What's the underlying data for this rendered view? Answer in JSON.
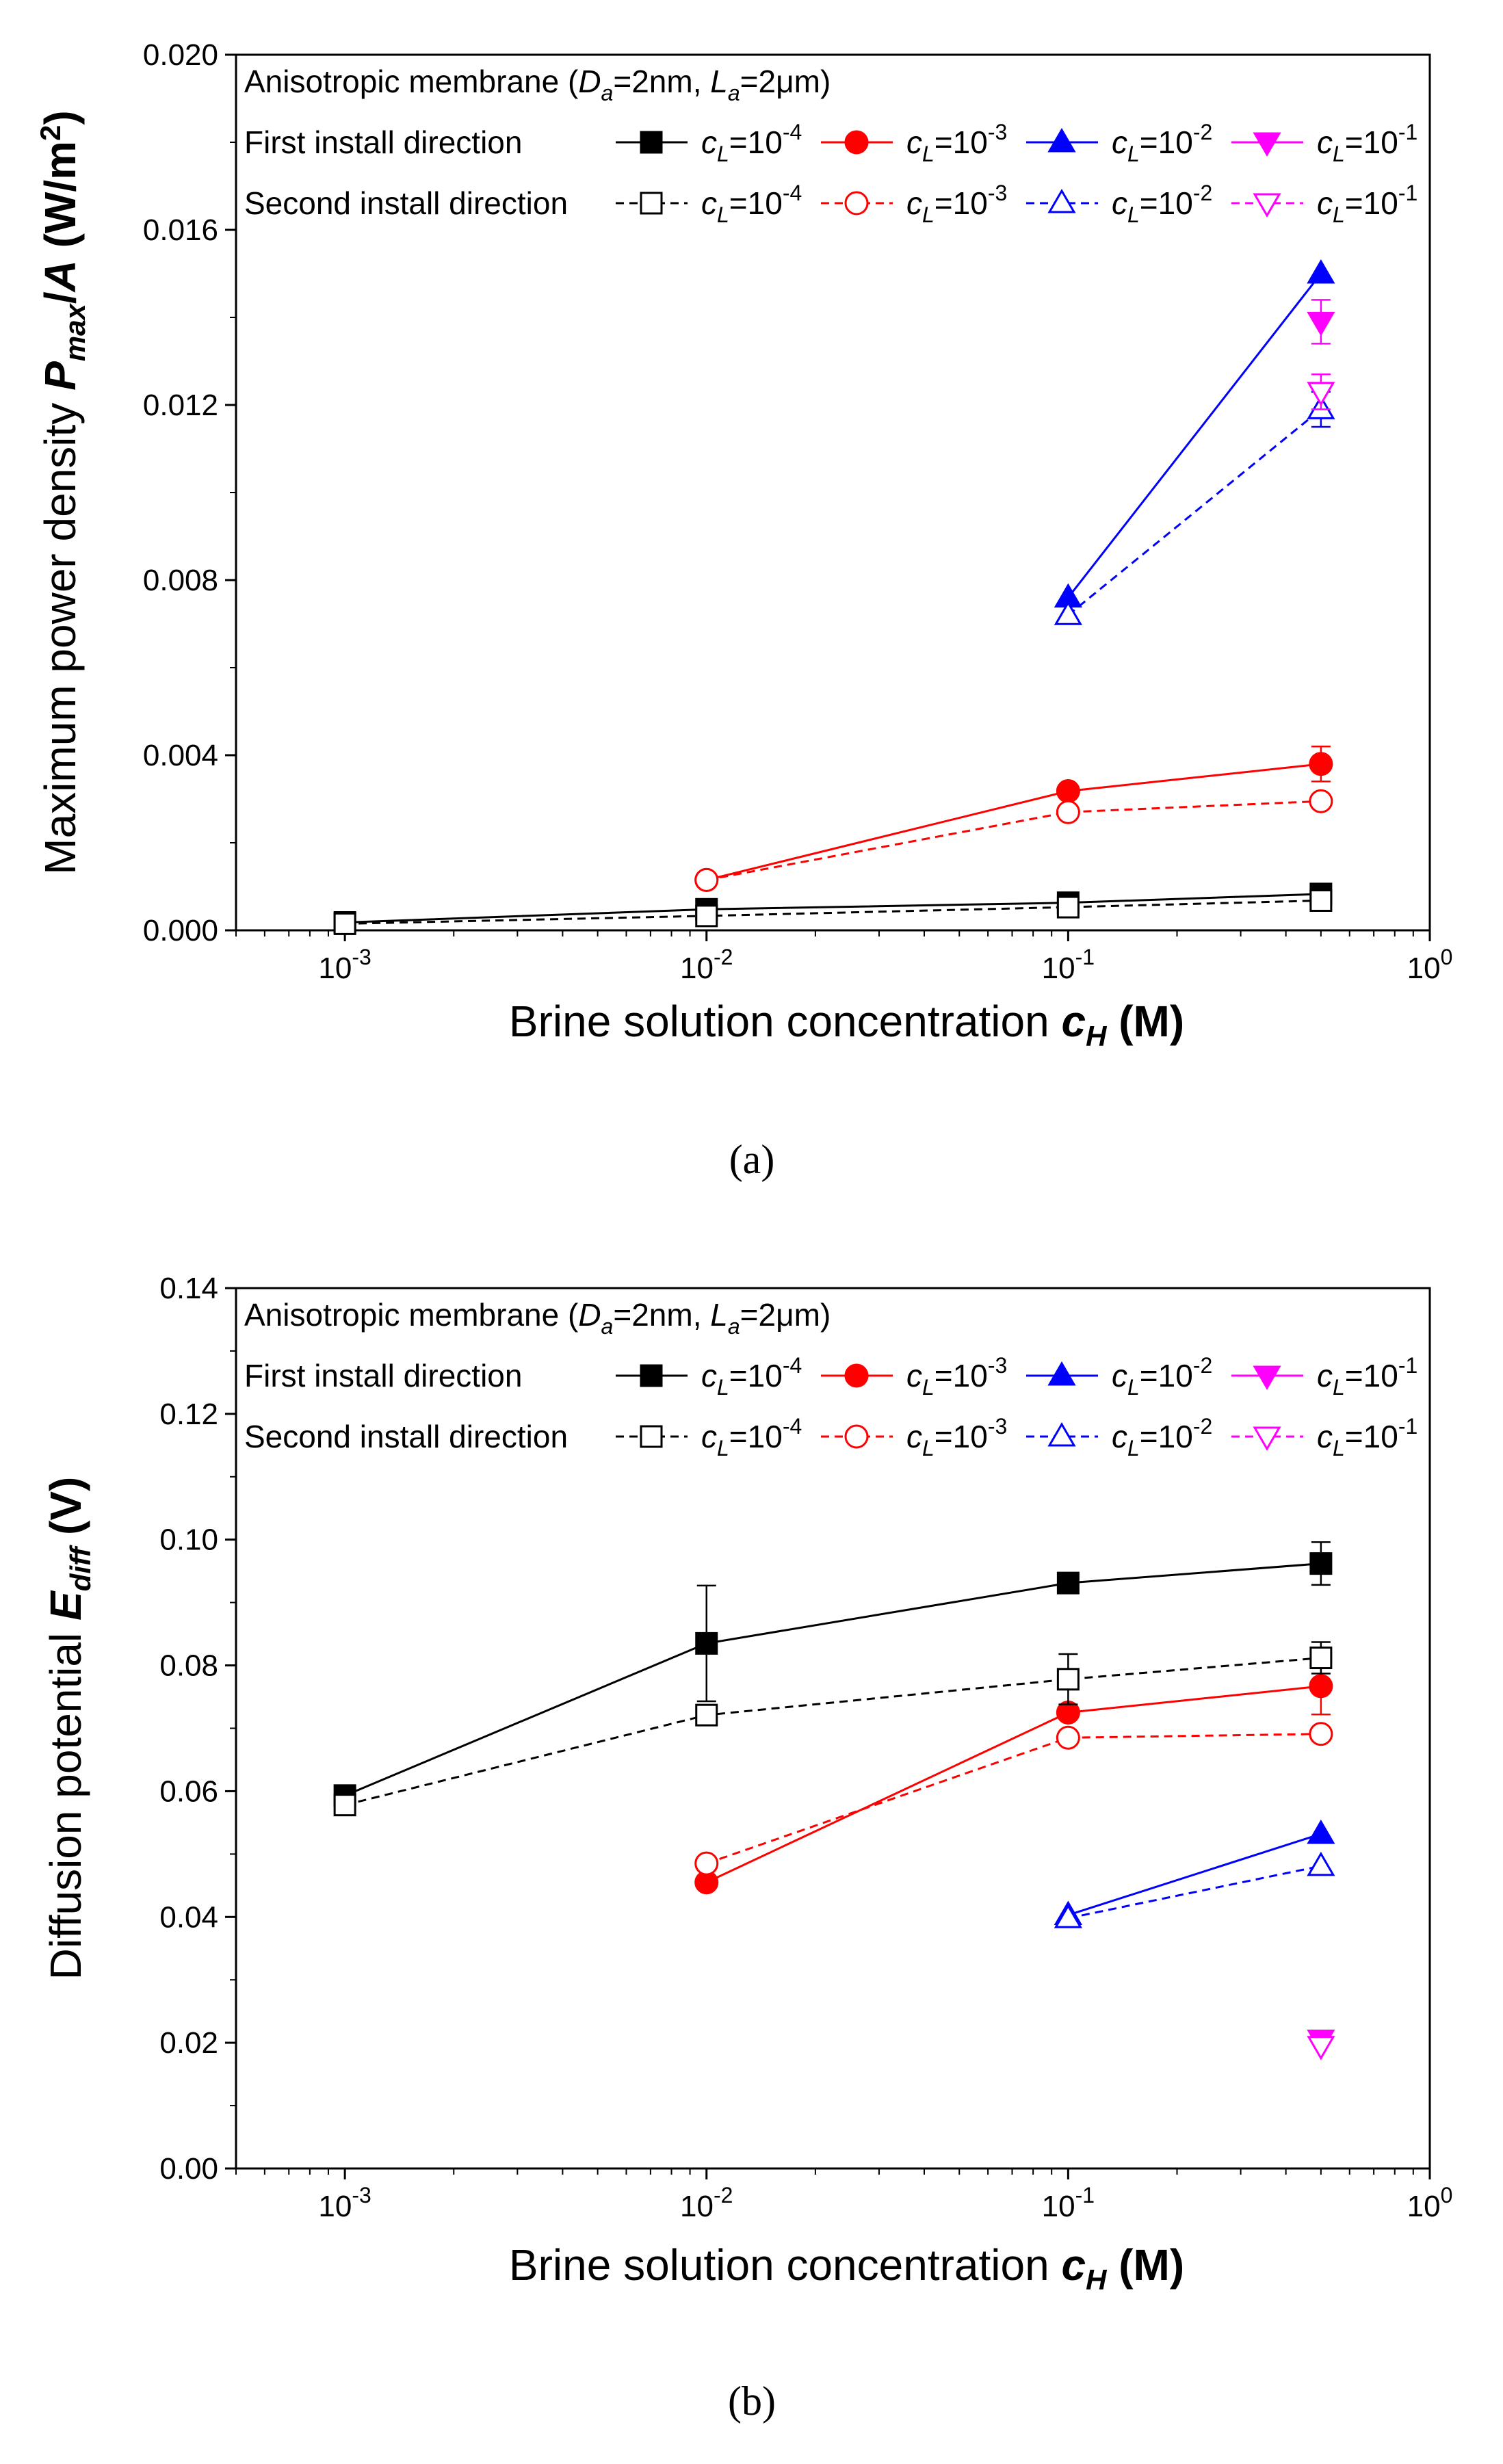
{
  "captions": [
    "(a)",
    "(b)"
  ],
  "legend_common": {
    "title_prefix": "Anisotropic membrane (",
    "title_Da": "D",
    "title_Da_sub": "a",
    "title_Da_val": "=2nm, ",
    "title_La": "L",
    "title_La_sub": "a",
    "title_La_val": "=2",
    "title_mu": "μ",
    "title_m_tail": "m)",
    "row1": "First install direction",
    "row2": "Second install direction",
    "entry_c": "c",
    "entry_sub": "L",
    "entry_eq": "=10",
    "exponents": [
      "-4",
      "-3",
      "-2",
      "-1"
    ]
  },
  "colors": {
    "black": "#000000",
    "red": "#ff0000",
    "blue": "#0000ff",
    "magenta": "#ff00ff"
  },
  "chart_data": [
    {
      "type": "line",
      "panel": "a",
      "xscale": "log",
      "xlim": [
        0.0005,
        1
      ],
      "ylim": [
        0,
        0.02
      ],
      "xticks": [
        {
          "value": 0.001,
          "base": "10",
          "exp": "-3"
        },
        {
          "value": 0.01,
          "base": "10",
          "exp": "-2"
        },
        {
          "value": 0.1,
          "base": "10",
          "exp": "-1"
        },
        {
          "value": 1,
          "base": "10",
          "exp": "0"
        }
      ],
      "yticks": [
        "0.000",
        "0.004",
        "0.008",
        "0.012",
        "0.016",
        "0.020"
      ],
      "ytick_values": [
        0,
        0.004,
        0.008,
        0.012,
        0.016,
        0.02
      ],
      "ylabel": {
        "pre": "Maximum power density ",
        "P": "P",
        "Psub": "max",
        "mid": "/",
        "A": "A",
        "post": " (W/m",
        "sup": "2",
        "end": ")"
      },
      "xlabel": {
        "pre": "Brine solution concentration ",
        "c": "c",
        "csub": "H",
        "post": " (M)"
      },
      "series": [
        {
          "name": "First install direction, cL=10^-4",
          "color": "#000000",
          "marker": "square",
          "filled": true,
          "dash": false,
          "x": [
            0.001,
            0.01,
            0.1,
            0.5
          ],
          "y": [
            0.00018,
            0.00048,
            0.00063,
            0.00083
          ],
          "err": [
            0,
            0,
            0,
            0
          ]
        },
        {
          "name": "First install direction, cL=10^-3",
          "color": "#ff0000",
          "marker": "circle",
          "filled": true,
          "dash": false,
          "x": [
            0.01,
            0.1,
            0.5
          ],
          "y": [
            0.00115,
            0.00318,
            0.0038
          ],
          "err": [
            0,
            0,
            0.0004
          ]
        },
        {
          "name": "First install direction, cL=10^-2",
          "color": "#0000ff",
          "marker": "triangle-up",
          "filled": true,
          "dash": false,
          "x": [
            0.1,
            0.5
          ],
          "y": [
            0.0076,
            0.015
          ],
          "err": [
            0,
            0
          ]
        },
        {
          "name": "First install direction, cL=10^-1",
          "color": "#ff00ff",
          "marker": "triangle-down",
          "filled": true,
          "dash": false,
          "x": [
            0.5
          ],
          "y": [
            0.0139
          ],
          "err": [
            0.0005
          ]
        },
        {
          "name": "Second install direction, cL=10^-4",
          "color": "#000000",
          "marker": "square",
          "filled": false,
          "dash": true,
          "x": [
            0.001,
            0.01,
            0.1,
            0.5
          ],
          "y": [
            0.00015,
            0.00033,
            0.00053,
            0.00068
          ],
          "err": [
            0,
            0,
            0,
            0
          ]
        },
        {
          "name": "Second install direction, cL=10^-3",
          "color": "#ff0000",
          "marker": "circle",
          "filled": false,
          "dash": true,
          "x": [
            0.01,
            0.1,
            0.5
          ],
          "y": [
            0.00115,
            0.0027,
            0.00295
          ],
          "err": [
            0,
            0,
            0
          ]
        },
        {
          "name": "Second install direction, cL=10^-2",
          "color": "#0000ff",
          "marker": "triangle-up",
          "filled": false,
          "dash": true,
          "x": [
            0.1,
            0.5
          ],
          "y": [
            0.0072,
            0.0119
          ],
          "err": [
            0,
            0.0004
          ]
        },
        {
          "name": "Second install direction, cL=10^-1",
          "color": "#ff00ff",
          "marker": "triangle-down",
          "filled": false,
          "dash": true,
          "x": [
            0.5
          ],
          "y": [
            0.0123
          ],
          "err": [
            0.0004
          ]
        }
      ]
    },
    {
      "type": "line",
      "panel": "b",
      "xscale": "log",
      "xlim": [
        0.0005,
        1
      ],
      "ylim": [
        0,
        0.14
      ],
      "xticks": [
        {
          "value": 0.001,
          "base": "10",
          "exp": "-3"
        },
        {
          "value": 0.01,
          "base": "10",
          "exp": "-2"
        },
        {
          "value": 0.1,
          "base": "10",
          "exp": "-1"
        },
        {
          "value": 1,
          "base": "10",
          "exp": "0"
        }
      ],
      "yticks": [
        "0.00",
        "0.02",
        "0.04",
        "0.06",
        "0.08",
        "0.10",
        "0.12",
        "0.14"
      ],
      "ytick_values": [
        0,
        0.02,
        0.04,
        0.06,
        0.08,
        0.1,
        0.12,
        0.14
      ],
      "ylabel": {
        "pre": "Diffusion potential ",
        "E": "E",
        "Esub": "diff",
        "post": " (V)"
      },
      "xlabel": {
        "pre": "Brine solution concentration ",
        "c": "c",
        "csub": "H",
        "post": " (M)"
      },
      "series": [
        {
          "name": "First install direction, cL=10^-4",
          "color": "#000000",
          "marker": "square",
          "filled": true,
          "dash": false,
          "x": [
            0.001,
            0.01,
            0.1,
            0.5
          ],
          "y": [
            0.0593,
            0.0835,
            0.0931,
            0.0962
          ],
          "err": [
            0,
            0.0092,
            0,
            0.0034
          ]
        },
        {
          "name": "First install direction, cL=10^-3",
          "color": "#ff0000",
          "marker": "circle",
          "filled": true,
          "dash": false,
          "x": [
            0.01,
            0.1,
            0.5
          ],
          "y": [
            0.0455,
            0.0725,
            0.0767
          ],
          "err": [
            0,
            0,
            0.0045
          ]
        },
        {
          "name": "First install direction, cL=10^-2",
          "color": "#0000ff",
          "marker": "triangle-up",
          "filled": true,
          "dash": false,
          "x": [
            0.1,
            0.5
          ],
          "y": [
            0.0403,
            0.0532
          ],
          "err": [
            0,
            0
          ]
        },
        {
          "name": "First install direction, cL=10^-1",
          "color": "#ff00ff",
          "marker": "triangle-down",
          "filled": true,
          "dash": false,
          "x": [
            0.5
          ],
          "y": [
            0.0205
          ],
          "err": [
            0
          ]
        },
        {
          "name": "Second install direction, cL=10^-4",
          "color": "#000000",
          "marker": "square",
          "filled": false,
          "dash": true,
          "x": [
            0.001,
            0.01,
            0.1,
            0.5
          ],
          "y": [
            0.0578,
            0.0721,
            0.0778,
            0.0812
          ],
          "err": [
            0,
            0,
            0.004,
            0.0025
          ]
        },
        {
          "name": "Second install direction, cL=10^-3",
          "color": "#ff0000",
          "marker": "circle",
          "filled": false,
          "dash": true,
          "x": [
            0.01,
            0.1,
            0.5
          ],
          "y": [
            0.0485,
            0.0685,
            0.0691
          ],
          "err": [
            0,
            0,
            0
          ]
        },
        {
          "name": "Second install direction, cL=10^-2",
          "color": "#0000ff",
          "marker": "triangle-up",
          "filled": false,
          "dash": true,
          "x": [
            0.1,
            0.5
          ],
          "y": [
            0.0398,
            0.0481
          ],
          "err": [
            0,
            0
          ]
        },
        {
          "name": "Second install direction, cL=10^-1",
          "color": "#ff00ff",
          "marker": "triangle-down",
          "filled": false,
          "dash": true,
          "x": [
            0.5
          ],
          "y": [
            0.0195
          ],
          "err": [
            0
          ]
        }
      ]
    }
  ]
}
